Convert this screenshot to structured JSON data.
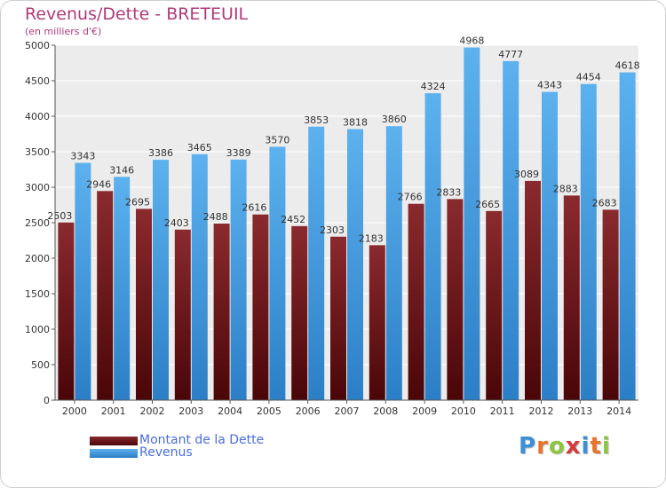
{
  "header": {
    "title": "Revenus/Dette - BRETEUIL",
    "subtitle": "(en milliers d'€)"
  },
  "legend": {
    "dette_label": "Montant de la Dette",
    "revenus_label": "Revenus"
  },
  "logo": {
    "text": "Proxiti",
    "letter_colors": [
      "#3d8fd6",
      "#e8742a",
      "#8cc63f",
      "#d63a3a",
      "#3d8fd6",
      "#e8742a",
      "#8cc63f"
    ]
  },
  "colors": {
    "dette": "#7a1e22",
    "revenus": "#4aa3e6",
    "plot_bg": "#ececec",
    "grid": "#ffffff",
    "text": "#333333"
  },
  "chart_data": {
    "type": "bar",
    "categories": [
      "2000",
      "2001",
      "2002",
      "2003",
      "2004",
      "2005",
      "2006",
      "2007",
      "2008",
      "2009",
      "2010",
      "2011",
      "2012",
      "2013",
      "2014"
    ],
    "series": [
      {
        "name": "Montant de la Dette",
        "values": [
          2503,
          2946,
          2695,
          2403,
          2488,
          2616,
          2452,
          2303,
          2183,
          2766,
          2833,
          2665,
          3089,
          2883,
          2683
        ]
      },
      {
        "name": "Revenus",
        "values": [
          3343,
          3146,
          3386,
          3465,
          3389,
          3570,
          3853,
          3818,
          3860,
          4324,
          4968,
          4777,
          4343,
          4454,
          4618
        ]
      }
    ],
    "ylim": [
      0,
      5000
    ],
    "yticks": [
      0,
      500,
      1000,
      1500,
      2000,
      2500,
      3000,
      3500,
      4000,
      4500,
      5000
    ],
    "grid": true,
    "legend_position": "bottom-left"
  }
}
